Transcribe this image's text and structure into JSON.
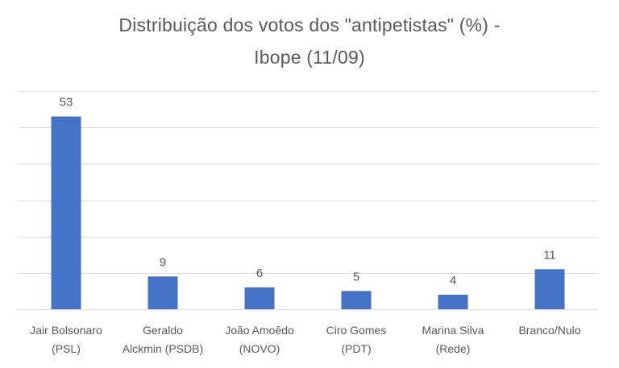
{
  "title_lines": [
    "Distribuição dos votos dos \"antipetistas\" (%) -",
    "Ibope (11/09)"
  ],
  "chart_data": {
    "type": "bar",
    "title": "Distribuição dos votos dos \"antipetistas\" (%) - Ibope (11/09)",
    "categories": [
      [
        "Jair Bolsonaro",
        "(PSL)"
      ],
      [
        "Geraldo",
        "Alckmin (PSDB)"
      ],
      [
        "João Amoêdo",
        "(NOVO)"
      ],
      [
        "Ciro Gomes",
        "(PDT)"
      ],
      [
        "Marina Silva",
        "(Rede)"
      ],
      [
        "Branco/Nulo"
      ]
    ],
    "values": [
      53,
      9,
      6,
      5,
      4,
      11
    ],
    "data_labels": [
      "53",
      "9",
      "6",
      "5",
      "4",
      "11"
    ],
    "ylim": [
      0,
      60
    ],
    "gridlines": [
      0,
      10,
      20,
      30,
      40,
      50,
      60
    ],
    "y_tick_labels_visible": false,
    "grid": true,
    "legend": "none",
    "colors": {
      "bar": "#4472C4",
      "grid": "#D9D9D9",
      "text": "#595959"
    }
  }
}
